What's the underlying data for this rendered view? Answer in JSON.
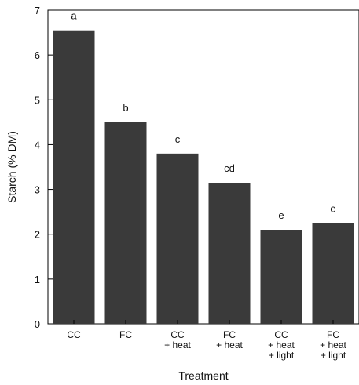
{
  "chart_data": {
    "type": "bar",
    "title": "",
    "xlabel": "Treatment",
    "ylabel": "Starch (% DM)",
    "ylim": [
      0,
      7
    ],
    "yticks": [
      0,
      1,
      2,
      3,
      4,
      5,
      6,
      7
    ],
    "grid": false,
    "bar_color": "#3a3a3a",
    "categories": [
      [
        "CC"
      ],
      [
        "FC"
      ],
      [
        "CC",
        "+ heat"
      ],
      [
        "FC",
        "+ heat"
      ],
      [
        "CC",
        "+ heat",
        "+ light"
      ],
      [
        "FC",
        "+ heat",
        "+ light"
      ]
    ],
    "values": [
      6.55,
      4.5,
      3.8,
      3.15,
      2.1,
      2.25
    ],
    "annotations": [
      "a",
      "b",
      "c",
      "cd",
      "e",
      "e"
    ]
  }
}
